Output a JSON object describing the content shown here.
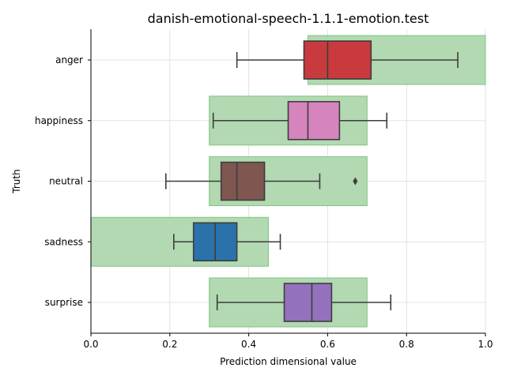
{
  "chart_data": {
    "type": "box",
    "orientation": "horizontal",
    "title": "danish-emotional-speech-1.1.1-emotion.test",
    "xlabel": "Prediction dimensional value",
    "ylabel": "Truth",
    "xlim": [
      0,
      1
    ],
    "xticks": [
      0.0,
      0.2,
      0.4,
      0.6,
      0.8,
      1.0
    ],
    "xtick_labels": [
      "0.0",
      "0.2",
      "0.4",
      "0.6",
      "0.8",
      "1.0"
    ],
    "grid": true,
    "categories": [
      "anger",
      "happiness",
      "neutral",
      "sadness",
      "surprise"
    ],
    "boxes": [
      {
        "category": "anger",
        "whisker_low": 0.37,
        "q1": 0.54,
        "median": 0.6,
        "q3": 0.71,
        "whisker_high": 0.93,
        "outliers": [],
        "color": "#c83a3d"
      },
      {
        "category": "happiness",
        "whisker_low": 0.31,
        "q1": 0.5,
        "median": 0.55,
        "q3": 0.63,
        "whisker_high": 0.75,
        "outliers": [],
        "color": "#d684bd"
      },
      {
        "category": "neutral",
        "whisker_low": 0.19,
        "q1": 0.33,
        "median": 0.37,
        "q3": 0.44,
        "whisker_high": 0.58,
        "outliers": [
          0.67
        ],
        "color": "#7f5750"
      },
      {
        "category": "sadness",
        "whisker_low": 0.21,
        "q1": 0.26,
        "median": 0.315,
        "q3": 0.37,
        "whisker_high": 0.48,
        "outliers": [],
        "color": "#2b72ab"
      },
      {
        "category": "surprise",
        "whisker_low": 0.32,
        "q1": 0.49,
        "median": 0.56,
        "q3": 0.61,
        "whisker_high": 0.76,
        "outliers": [],
        "color": "#9471bd"
      }
    ],
    "expected_ranges": [
      {
        "category": "anger",
        "low": 0.55,
        "high": 1.0
      },
      {
        "category": "happiness",
        "low": 0.3,
        "high": 0.7
      },
      {
        "category": "neutral",
        "low": 0.3,
        "high": 0.7
      },
      {
        "category": "sadness",
        "low": 0.0,
        "high": 0.45
      },
      {
        "category": "surprise",
        "low": 0.3,
        "high": 0.7
      }
    ],
    "range_color": "#b2d9b2",
    "range_edge_color": "#82c482"
  }
}
